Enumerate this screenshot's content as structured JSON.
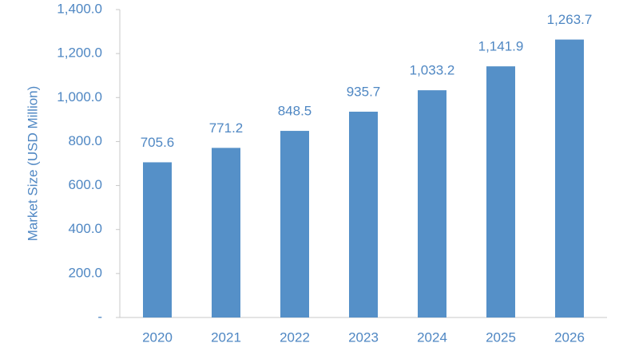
{
  "chart_data": {
    "type": "bar",
    "y_label": "Market Size (USD Million)",
    "categories": [
      "2020",
      "2021",
      "2022",
      "2023",
      "2024",
      "2025",
      "2026"
    ],
    "values": [
      705.6,
      771.2,
      848.5,
      935.7,
      1033.2,
      1141.9,
      1263.7
    ],
    "value_labels": [
      "705.6",
      "771.2",
      "848.5",
      "935.7",
      "1,033.2",
      "1,141.9",
      "1,263.7"
    ],
    "color": "#5590c8",
    "ylim": [
      0,
      1400
    ],
    "yticks": [
      {
        "value": 0,
        "label": "-"
      },
      {
        "value": 200,
        "label": "200.0"
      },
      {
        "value": 400,
        "label": "400.0"
      },
      {
        "value": 600,
        "label": "600.0"
      },
      {
        "value": 800,
        "label": "800.0"
      },
      {
        "value": 1000,
        "label": "1,000.0"
      },
      {
        "value": 1200,
        "label": "1,200.0"
      },
      {
        "value": 1400,
        "label": "1,400.0"
      }
    ]
  }
}
